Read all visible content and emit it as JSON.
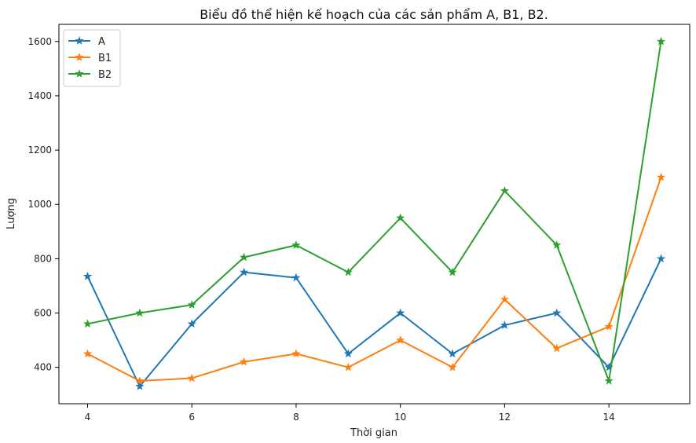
{
  "chart_data": {
    "type": "line",
    "title": "Biểu đồ thể hiện kế hoạch của các sản phẩm A, B1, B2.",
    "xlabel": "Thời gian",
    "ylabel": "Lượng",
    "x": [
      4,
      5,
      6,
      7,
      8,
      9,
      10,
      11,
      12,
      13,
      14,
      15
    ],
    "xticks": [
      4,
      6,
      8,
      10,
      12,
      14
    ],
    "yticks": [
      400,
      600,
      800,
      1000,
      1200,
      1400,
      1600
    ],
    "xlim": [
      3.45,
      15.55
    ],
    "ylim": [
      266,
      1663
    ],
    "grid": false,
    "legend_position": "top-left",
    "marker": "star",
    "series": [
      {
        "name": "A",
        "color": "#1f77b4",
        "values": [
          735,
          330,
          560,
          750,
          730,
          450,
          600,
          450,
          555,
          600,
          400,
          800
        ]
      },
      {
        "name": "B1",
        "color": "#ff7f0e",
        "values": [
          450,
          350,
          360,
          420,
          450,
          400,
          500,
          400,
          650,
          470,
          550,
          1100
        ]
      },
      {
        "name": "B2",
        "color": "#2ca02c",
        "values": [
          560,
          600,
          630,
          805,
          850,
          750,
          950,
          750,
          1050,
          850,
          350,
          1600
        ]
      }
    ]
  }
}
